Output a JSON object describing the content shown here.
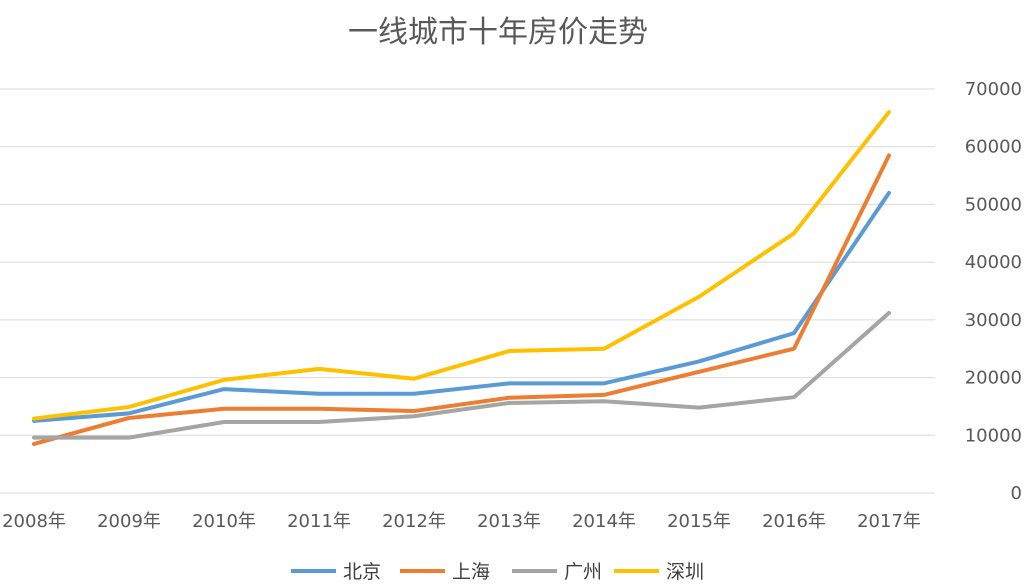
{
  "chart_data": {
    "type": "line",
    "title": "一线城市十年房价走势",
    "categories": [
      "2008年",
      "2009年",
      "2010年",
      "2011年",
      "2012年",
      "2013年",
      "2014年",
      "2015年",
      "2016年",
      "2017年"
    ],
    "ylim": [
      0,
      70000
    ],
    "yticks": [
      "0",
      "10000",
      "20000",
      "30000",
      "40000",
      "50000",
      "60000",
      "70000"
    ],
    "y_axis_side": "right",
    "grid": true,
    "legend_position": "bottom",
    "series": [
      {
        "name": "北京",
        "color": "#5b9bd5",
        "values": [
          12500,
          13800,
          18000,
          17200,
          17200,
          19000,
          19000,
          22800,
          27700,
          52000
        ]
      },
      {
        "name": "上海",
        "color": "#ed7d31",
        "values": [
          8500,
          13000,
          14600,
          14600,
          14200,
          16500,
          17000,
          21000,
          25000,
          58500
        ]
      },
      {
        "name": "广州",
        "color": "#a5a5a5",
        "values": [
          9600,
          9600,
          12300,
          12300,
          13300,
          15600,
          15900,
          14800,
          16600,
          31200
        ]
      },
      {
        "name": "深圳",
        "color": "#ffc000",
        "values": [
          12900,
          14900,
          19600,
          21500,
          19800,
          24600,
          25000,
          34000,
          45000,
          66000
        ]
      }
    ]
  }
}
